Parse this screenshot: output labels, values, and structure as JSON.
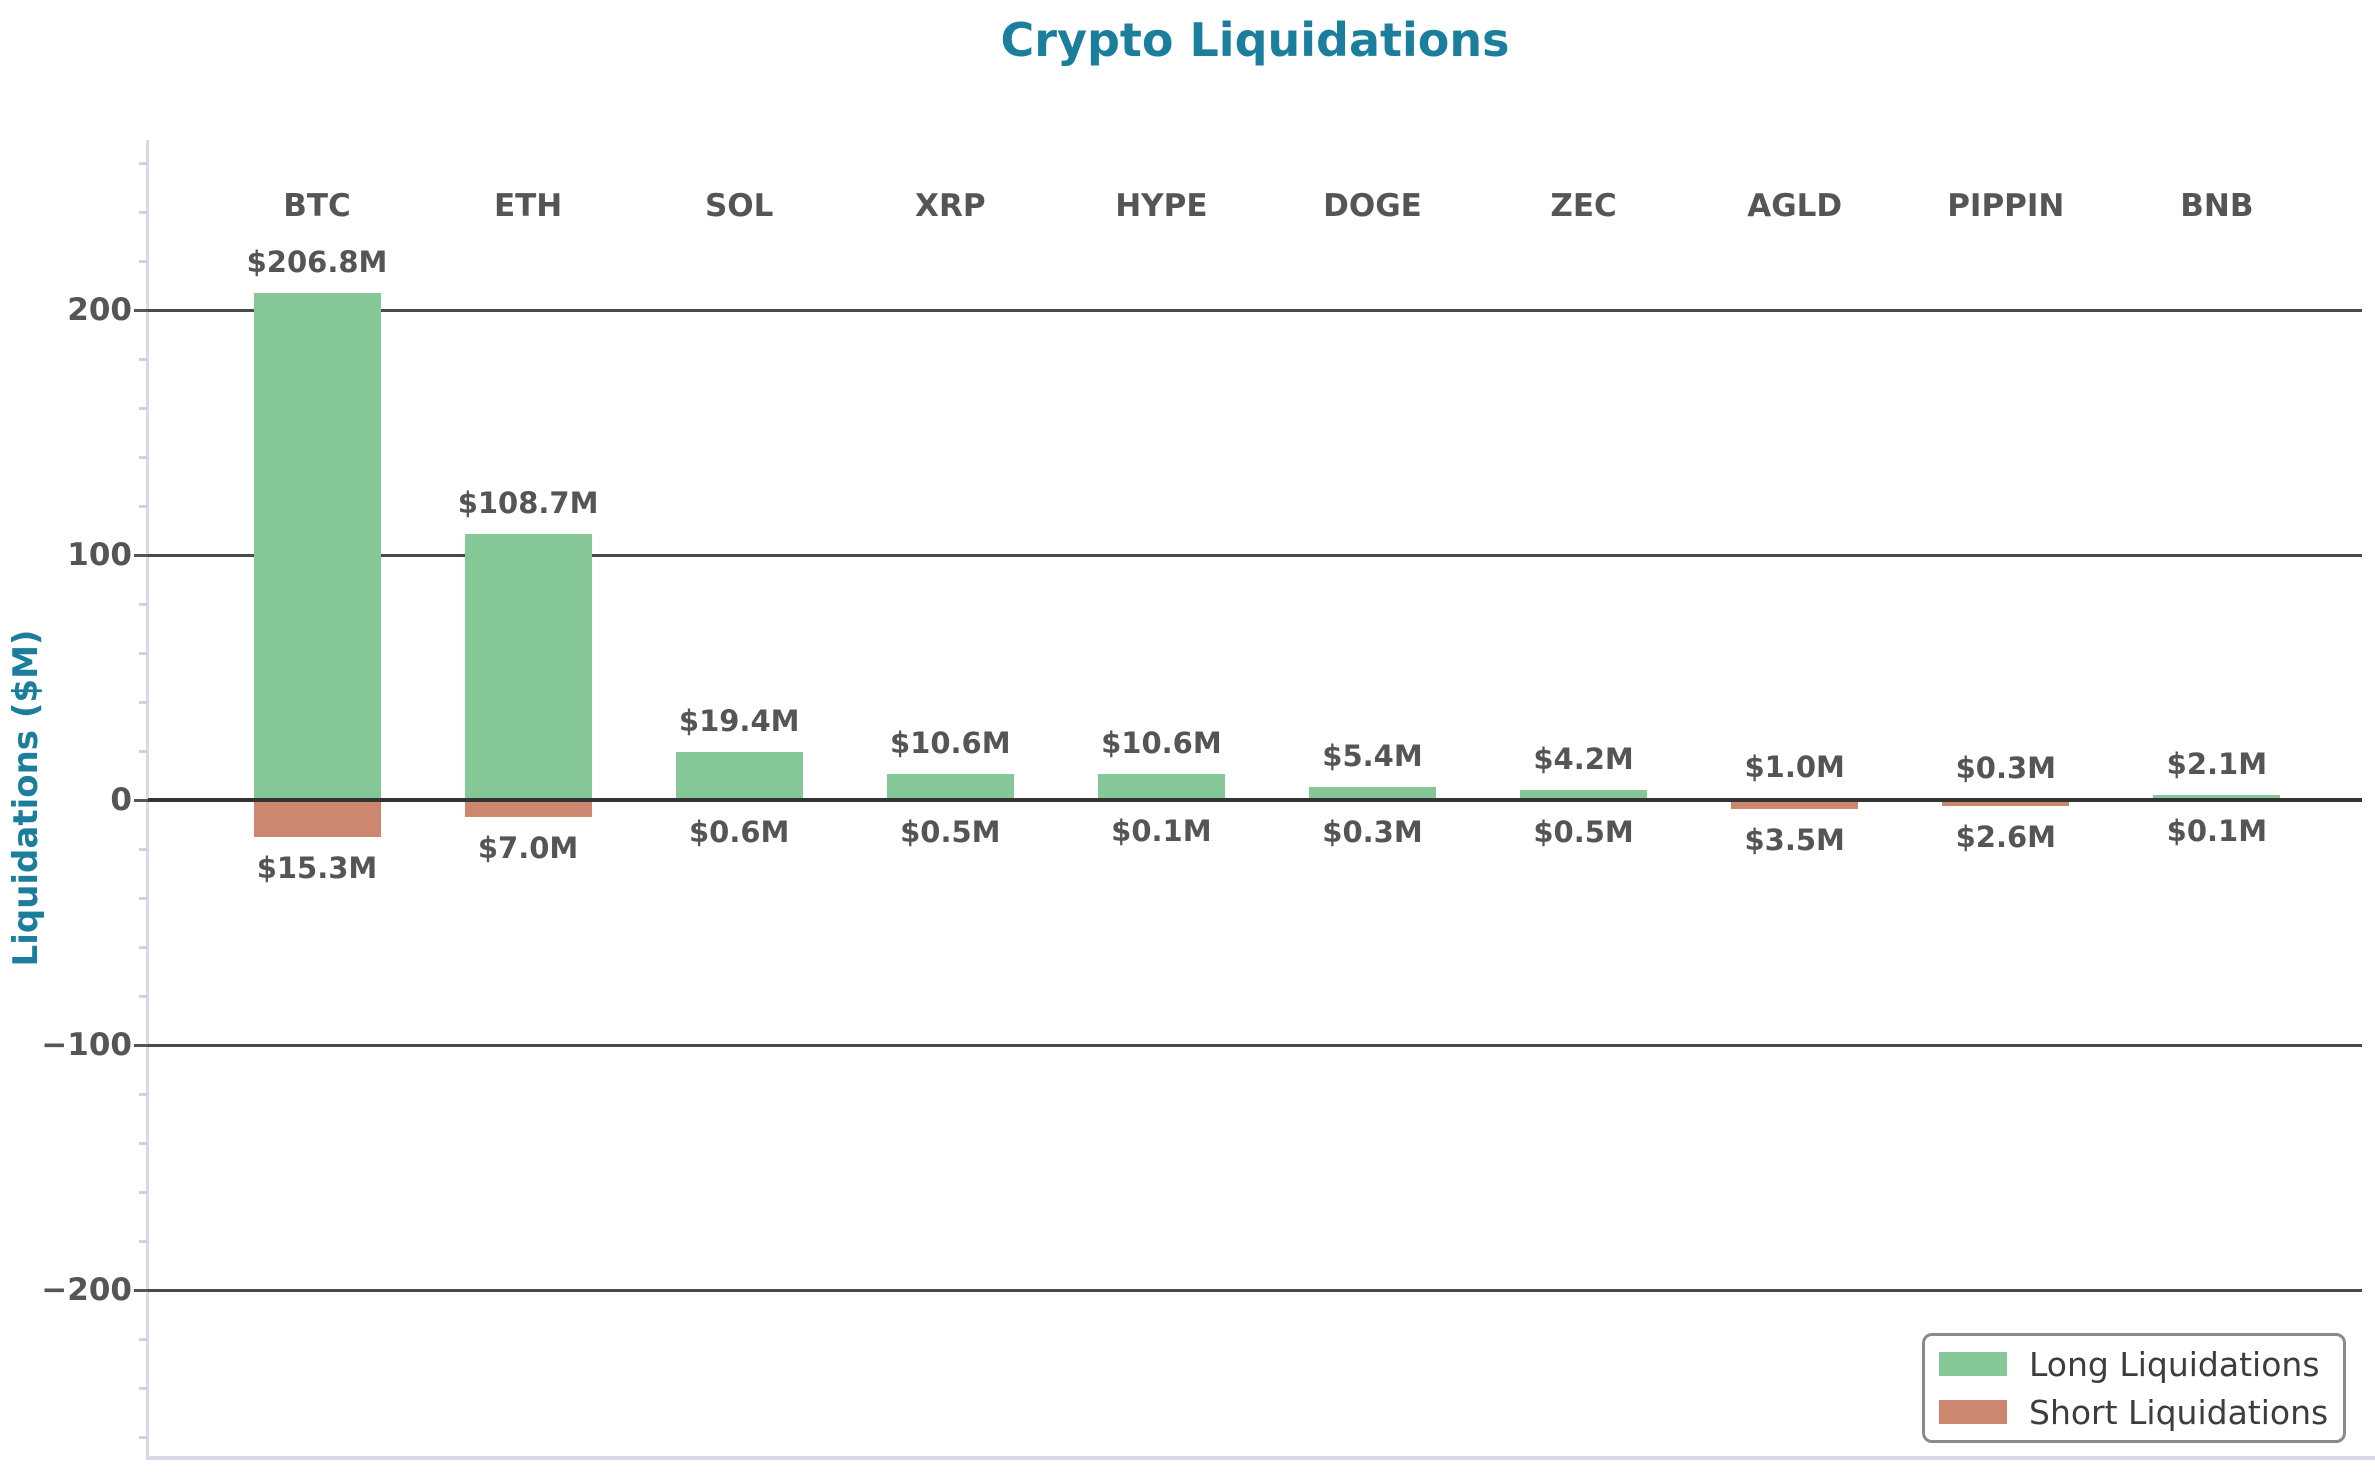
{
  "chart_data": {
    "type": "bar",
    "title": "Crypto Liquidations",
    "title_color": "#1a7e9c",
    "ylabel": "Liquidations ($M)",
    "ylabel_color": "#1a7e9c",
    "categories": [
      "BTC",
      "ETH",
      "SOL",
      "XRP",
      "HYPE",
      "DOGE",
      "ZEC",
      "AGLD",
      "PIPPIN",
      "BNB"
    ],
    "series": [
      {
        "name": "Long Liquidations",
        "color": "#85c796",
        "direction": "positive",
        "values": [
          206.8,
          108.7,
          19.4,
          10.6,
          10.6,
          5.4,
          4.2,
          1.0,
          0.3,
          2.1
        ],
        "value_labels": [
          "$206.8M",
          "$108.7M",
          "$19.4M",
          "$10.6M",
          "$10.6M",
          "$5.4M",
          "$4.2M",
          "$1.0M",
          "$0.3M",
          "$2.1M"
        ]
      },
      {
        "name": "Short Liquidations",
        "color": "#cd8770",
        "direction": "negative",
        "values": [
          15.3,
          7.0,
          0.6,
          0.5,
          0.1,
          0.3,
          0.5,
          3.5,
          2.6,
          0.1
        ],
        "value_labels": [
          "$15.3M",
          "$7.0M",
          "$0.6M",
          "$0.5M",
          "$0.1M",
          "$0.3M",
          "$0.5M",
          "$3.5M",
          "$2.6M",
          "$0.1M"
        ]
      }
    ],
    "y_axis": {
      "ticks": [
        {
          "value": 200,
          "label": "200"
        },
        {
          "value": 100,
          "label": "100"
        },
        {
          "value": 0,
          "label": "0"
        },
        {
          "value": -100,
          "label": "−100"
        },
        {
          "value": -200,
          "label": "−200"
        }
      ],
      "minor_tick_step": 20,
      "ylim": [
        -270,
        270
      ]
    },
    "grid": "horizontal",
    "zero_line": true,
    "legend": {
      "position": "lower right",
      "entries": [
        "Long Liquidations",
        "Short Liquidations"
      ]
    },
    "text_color": "#555555",
    "gridline_color": "#4a4a4d",
    "zero_line_color": "#333333",
    "spine_color": "#d5dae6",
    "minor_tick_color": "#ccd3e2"
  }
}
